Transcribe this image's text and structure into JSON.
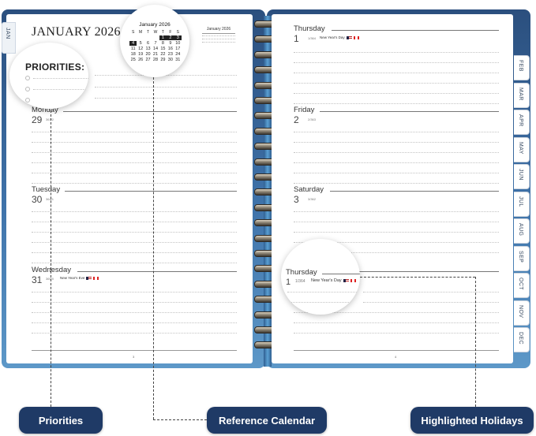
{
  "left_page": {
    "month_tab": "JAN",
    "title": "JANUARY 2026",
    "page_number": "3",
    "mini_calendar_title": "January 2026",
    "days": [
      {
        "name": "Monday",
        "number": "29",
        "day_of_year": "363/2"
      },
      {
        "name": "Tuesday",
        "number": "30",
        "day_of_year": "364/1"
      },
      {
        "name": "Wednesday",
        "number": "31",
        "day_of_year": "365/0",
        "holiday": "New Year's Eve"
      }
    ]
  },
  "right_page": {
    "page_number": "4",
    "days": [
      {
        "name": "Thursday",
        "number": "1",
        "day_of_year": "1/364",
        "holiday": "New Year's Day"
      },
      {
        "name": "Friday",
        "number": "2",
        "day_of_year": "2/363"
      },
      {
        "name": "Saturday",
        "number": "3",
        "day_of_year": "3/362"
      }
    ],
    "month_tabs": [
      "FEB",
      "MAR",
      "APR",
      "MAY",
      "JUN",
      "JUL",
      "AUG",
      "SEP",
      "OCT",
      "NOV",
      "DEC"
    ]
  },
  "zoom_priorities": {
    "title": "PRIORITIES:"
  },
  "zoom_calendar": {
    "title": "January 2026",
    "weekdays": [
      "S",
      "M",
      "T",
      "W",
      "T",
      "F",
      "S"
    ],
    "cells": [
      "",
      "",
      "",
      "",
      "1",
      "2",
      "3",
      "4",
      "5",
      "6",
      "7",
      "8",
      "9",
      "10",
      "11",
      "12",
      "13",
      "14",
      "15",
      "16",
      "17",
      "18",
      "19",
      "20",
      "21",
      "22",
      "23",
      "24",
      "25",
      "26",
      "27",
      "28",
      "29",
      "30",
      "31"
    ]
  },
  "zoom_holiday": {
    "name": "Thursday",
    "number": "1",
    "day_of_year": "1/364",
    "holiday": "New Year's Day"
  },
  "callouts": {
    "priorities": "Priorities",
    "reference_calendar": "Reference Calendar",
    "highlighted_holidays": "Highlighted Holidays"
  },
  "colors": {
    "cover": "#3f73aa",
    "callout_bg": "#1f3a66"
  }
}
